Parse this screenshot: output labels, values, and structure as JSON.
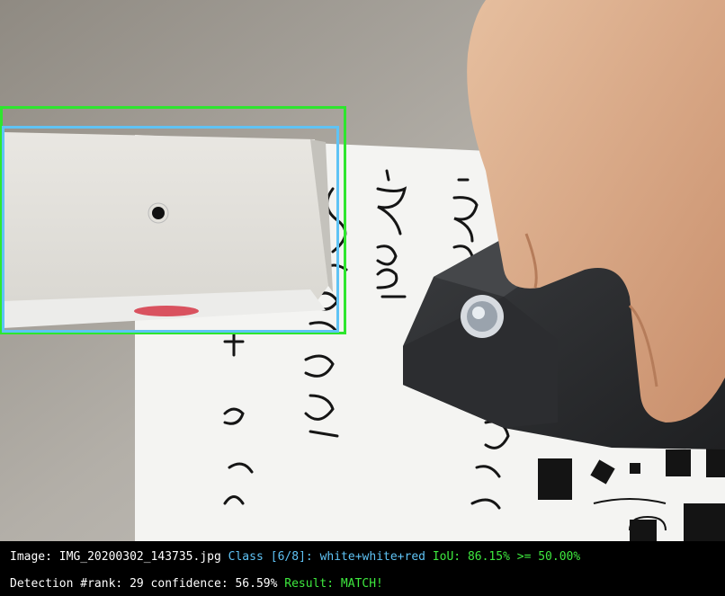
{
  "photo": {
    "description_icon": "photo-icon",
    "handwriting": [
      "-Boden",
      "-Bode",
      "Schieben",
      "+ in die"
    ]
  },
  "overlay": {
    "line1": {
      "image_label": "Image:",
      "image_name": "IMG_20200302_143735.jpg",
      "class_label": "Class",
      "class_index": "[6/8]:",
      "class_name": "white+white+red",
      "iou_label": "IoU:",
      "iou_value": "86.15%",
      "iou_op": ">=",
      "iou_threshold": "50.00%"
    },
    "line2": {
      "detection_label": "Detection #rank:",
      "rank": "29",
      "confidence_label": "confidence:",
      "confidence": "56.59%",
      "result_label": "Result:",
      "result": "MATCH!"
    }
  },
  "colors": {
    "ground_truth_box": "#2ee62e",
    "prediction_box": "#5fc3f5",
    "text_white": "#ffffff",
    "text_blue": "#5fc3f5",
    "text_green": "#3ee83e"
  }
}
